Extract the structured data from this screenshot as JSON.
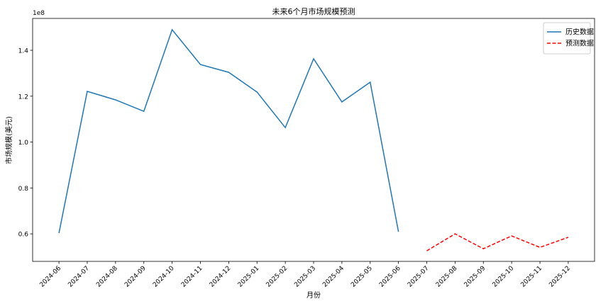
{
  "chart_data": {
    "type": "line",
    "title": "未来6个月市场规模预测",
    "x_label": "月份",
    "y_label": "市场规模(美元)",
    "y_offset_label": "1e8",
    "categories": [
      "2024-06",
      "2024-07",
      "2024-08",
      "2024-09",
      "2024-10",
      "2024-11",
      "2024-12",
      "2025-01",
      "2025-02",
      "2025-03",
      "2025-04",
      "2025-05",
      "2025-06",
      "2025-07",
      "2025-08",
      "2025-09",
      "2025-10",
      "2025-11",
      "2025-12"
    ],
    "series": [
      {
        "name": "历史数据",
        "color": "#1f77b4",
        "linestyle": "solid",
        "values": [
          0.603,
          1.221,
          1.184,
          1.134,
          1.49,
          1.338,
          1.304,
          1.218,
          1.063,
          1.363,
          1.175,
          1.261,
          0.609,
          null,
          null,
          null,
          null,
          null,
          null
        ]
      },
      {
        "name": "预测数据",
        "color": "#ff0000",
        "linestyle": "dashed",
        "values": [
          null,
          null,
          null,
          null,
          null,
          null,
          null,
          null,
          null,
          null,
          null,
          null,
          null,
          0.526,
          0.6,
          0.535,
          0.591,
          0.541,
          0.585
        ]
      }
    ],
    "ylim": [
      0.48,
      1.539
    ],
    "yticks": [
      {
        "value": 0.6,
        "label": "0.6"
      },
      {
        "value": 0.8,
        "label": "0.8"
      },
      {
        "value": 1.0,
        "label": "1.0"
      },
      {
        "value": 1.2,
        "label": "1.2"
      },
      {
        "value": 1.4,
        "label": "1.4"
      }
    ],
    "grid": false,
    "legend": "upper right"
  }
}
